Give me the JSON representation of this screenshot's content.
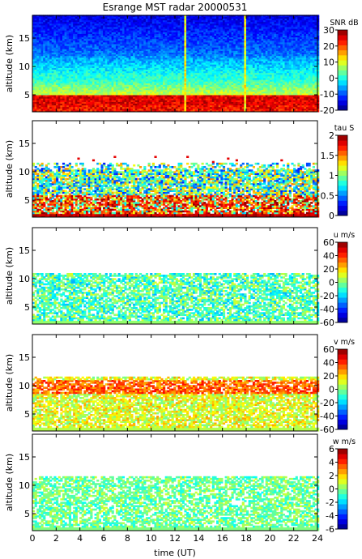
{
  "title": "Esrange MST radar 20000531",
  "xlabel": "time (UT)",
  "chart_data": [
    {
      "type": "heatmap",
      "name": "snr",
      "title": "Esrange MST radar 20000531",
      "ylabel": "altitude (km)",
      "xlabel": "",
      "xlim": [
        0,
        24
      ],
      "ylim": [
        2,
        19
      ],
      "x_ticks": [
        0,
        2,
        4,
        6,
        8,
        10,
        12,
        14,
        16,
        18,
        20,
        22,
        24
      ],
      "y_ticks": [
        5,
        10,
        15
      ],
      "colorbar": {
        "label": "SNR dB",
        "range": [
          -20,
          30
        ],
        "ticks": [
          -20,
          -10,
          0,
          10,
          20,
          30
        ]
      }
    },
    {
      "type": "heatmap",
      "name": "tau",
      "ylabel": "altitude (km)",
      "xlabel": "",
      "xlim": [
        0,
        24
      ],
      "ylim": [
        2,
        19
      ],
      "x_ticks": [
        0,
        2,
        4,
        6,
        8,
        10,
        12,
        14,
        16,
        18,
        20,
        22,
        24
      ],
      "y_ticks": [
        5,
        10,
        15
      ],
      "colorbar": {
        "label": "tau S",
        "range": [
          0,
          2
        ],
        "ticks": [
          0,
          0.5,
          1,
          1.5,
          2
        ]
      }
    },
    {
      "type": "heatmap",
      "name": "u",
      "ylabel": "altitude (km)",
      "xlabel": "",
      "xlim": [
        0,
        24
      ],
      "ylim": [
        2,
        19
      ],
      "x_ticks": [
        0,
        2,
        4,
        6,
        8,
        10,
        12,
        14,
        16,
        18,
        20,
        22,
        24
      ],
      "y_ticks": [
        5,
        10,
        15
      ],
      "colorbar": {
        "label": "u m/s",
        "range": [
          -60,
          60
        ],
        "ticks": [
          -60,
          -40,
          -20,
          0,
          20,
          40,
          60
        ]
      }
    },
    {
      "type": "heatmap",
      "name": "v",
      "ylabel": "altitude (km)",
      "xlabel": "",
      "xlim": [
        0,
        24
      ],
      "ylim": [
        2,
        19
      ],
      "x_ticks": [
        0,
        2,
        4,
        6,
        8,
        10,
        12,
        14,
        16,
        18,
        20,
        22,
        24
      ],
      "y_ticks": [
        5,
        10,
        15
      ],
      "colorbar": {
        "label": "v m/s",
        "range": [
          -60,
          60
        ],
        "ticks": [
          -60,
          -40,
          -20,
          0,
          20,
          40,
          60
        ]
      }
    },
    {
      "type": "heatmap",
      "name": "w",
      "ylabel": "altitude (km)",
      "xlabel": "time (UT)",
      "xlim": [
        0,
        24
      ],
      "ylim": [
        2,
        19
      ],
      "x_ticks": [
        0,
        2,
        4,
        6,
        8,
        10,
        12,
        14,
        16,
        18,
        20,
        22,
        24
      ],
      "y_ticks": [
        5,
        10,
        15
      ],
      "colorbar": {
        "label": "w m/s",
        "range": [
          -6,
          6
        ],
        "ticks": [
          -6,
          -4,
          -2,
          0,
          2,
          4,
          6
        ]
      }
    }
  ]
}
